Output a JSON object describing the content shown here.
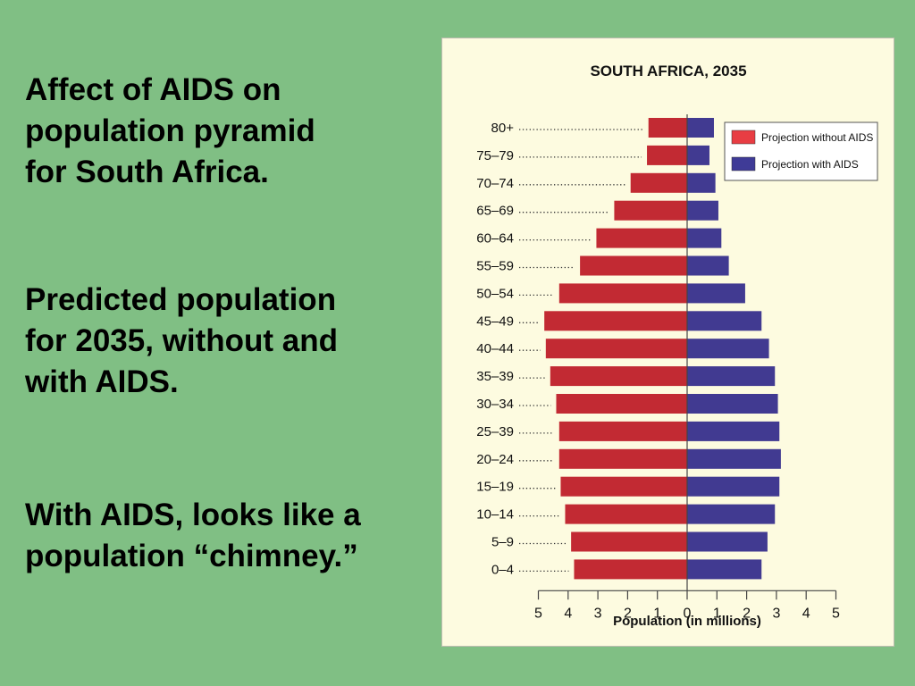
{
  "slide": {
    "background": "#80bf84",
    "paragraphs": [
      {
        "lines": [
          "Affect of AIDS on",
          "population pyramid",
          "for South Africa."
        ]
      },
      {
        "lines": [
          "Predicted population",
          "for 2035, without and",
          "with AIDS."
        ]
      },
      {
        "lines": [
          "With AIDS, looks like a",
          "population “chimney.”"
        ]
      }
    ]
  },
  "colors": {
    "panel_background": "#fdfbe0",
    "without_aids": "#c22a33",
    "with_aids": "#413a91",
    "legend_without_aids": "#e83d43",
    "legend_with_aids": "#3f3b97"
  },
  "chart_data": {
    "type": "bar",
    "orientation": "horizontal-population-pyramid",
    "title": "SOUTH AFRICA, 2035",
    "xlabel": "Population (in millions)",
    "xlim": [
      -5,
      5
    ],
    "x_tick_labels": [
      "5",
      "4",
      "3",
      "2",
      "1",
      "0",
      "1",
      "2",
      "3",
      "4",
      "5"
    ],
    "legend_position": "top-right",
    "categories": [
      "80+",
      "75–79",
      "70–74",
      "65–69",
      "60–64",
      "55–59",
      "50–54",
      "45–49",
      "40–44",
      "35–39",
      "30–34",
      "25–39",
      "20–24",
      "15–19",
      "10–14",
      "5–9",
      "0–4"
    ],
    "series": [
      {
        "name": "Projection without AIDS",
        "side": "left",
        "values": [
          1.3,
          1.35,
          1.9,
          2.45,
          3.05,
          3.6,
          4.3,
          4.8,
          4.75,
          4.6,
          4.4,
          4.3,
          4.3,
          4.25,
          4.1,
          3.9,
          3.8
        ]
      },
      {
        "name": "Projection with AIDS",
        "side": "right",
        "values": [
          0.9,
          0.75,
          0.95,
          1.05,
          1.15,
          1.4,
          1.95,
          2.5,
          2.75,
          2.95,
          3.05,
          3.1,
          3.15,
          3.1,
          2.95,
          2.7,
          2.5
        ]
      }
    ]
  }
}
